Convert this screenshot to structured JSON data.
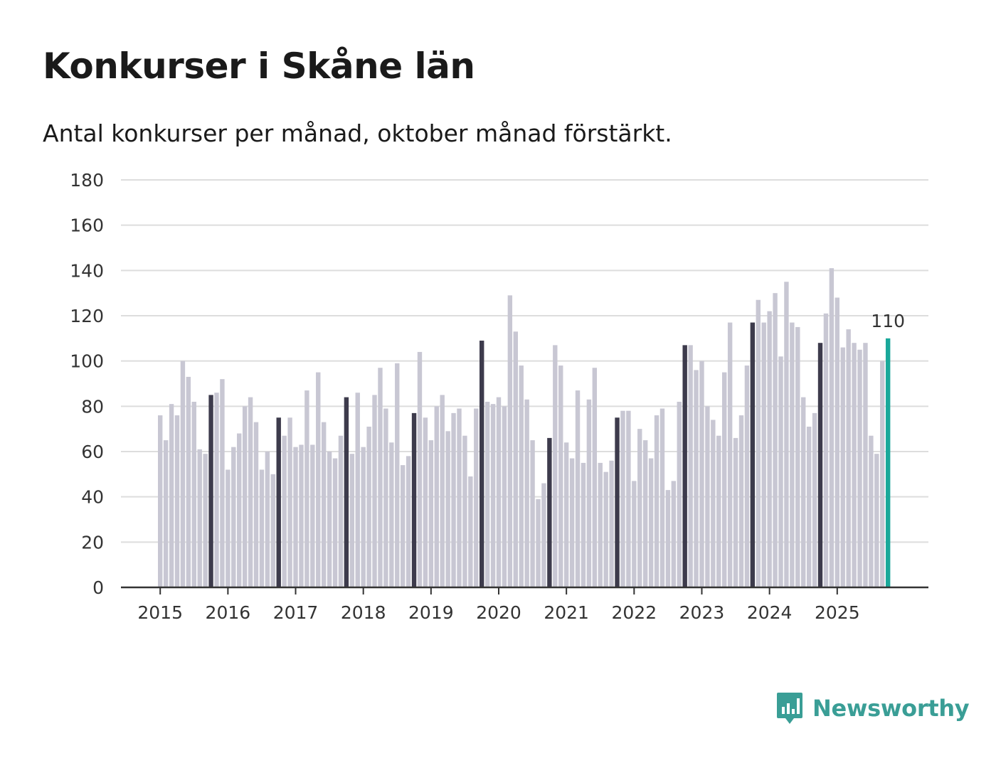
{
  "title": "Konkurser i Skåne län",
  "subtitle": "Antal konkurser per månad, oktober månad förstärkt.",
  "brand": {
    "name": "Newsworthy",
    "icon": "bar-chart-speech-bubble-icon",
    "color": "#3a9e96"
  },
  "colors": {
    "regular": "#c8c7d3",
    "highlight": "#3d3b4c",
    "current": "#1aa89a",
    "grid": "#dddddd",
    "axis": "#333333"
  },
  "chart_data": {
    "type": "bar",
    "title": "Konkurser i Skåne län",
    "subtitle": "Antal konkurser per månad, oktober månad förstärkt.",
    "xlabel": "",
    "ylabel": "",
    "ylim": [
      0,
      180
    ],
    "yticks": [
      0,
      20,
      40,
      60,
      80,
      100,
      120,
      140,
      160,
      180
    ],
    "xticks": [
      "2015",
      "2016",
      "2017",
      "2018",
      "2019",
      "2020",
      "2021",
      "2022",
      "2023",
      "2024",
      "2025"
    ],
    "start": "2015-01",
    "highlight_month": "oktober",
    "annotation": {
      "label": "110",
      "month": "2025-10"
    },
    "values": [
      76,
      65,
      81,
      76,
      100,
      93,
      82,
      61,
      59,
      85,
      86,
      92,
      52,
      62,
      68,
      80,
      84,
      73,
      52,
      60,
      50,
      75,
      67,
      75,
      62,
      63,
      87,
      63,
      95,
      73,
      60,
      57,
      67,
      84,
      59,
      86,
      62,
      71,
      85,
      97,
      79,
      64,
      99,
      54,
      58,
      77,
      104,
      75,
      65,
      80,
      85,
      69,
      77,
      79,
      67,
      49,
      79,
      109,
      82,
      81,
      84,
      80,
      129,
      113,
      98,
      83,
      65,
      39,
      46,
      66,
      107,
      98,
      64,
      57,
      87,
      55,
      83,
      97,
      55,
      51,
      56,
      75,
      78,
      78,
      47,
      70,
      65,
      57,
      76,
      79,
      43,
      47,
      82,
      107,
      107,
      96,
      100,
      80,
      74,
      67,
      95,
      117,
      66,
      76,
      98,
      117,
      127,
      117,
      122,
      130,
      102,
      135,
      117,
      115,
      84,
      71,
      77,
      108,
      121,
      141,
      128,
      106,
      114,
      108,
      105,
      108,
      67,
      59,
      100,
      110
    ]
  }
}
